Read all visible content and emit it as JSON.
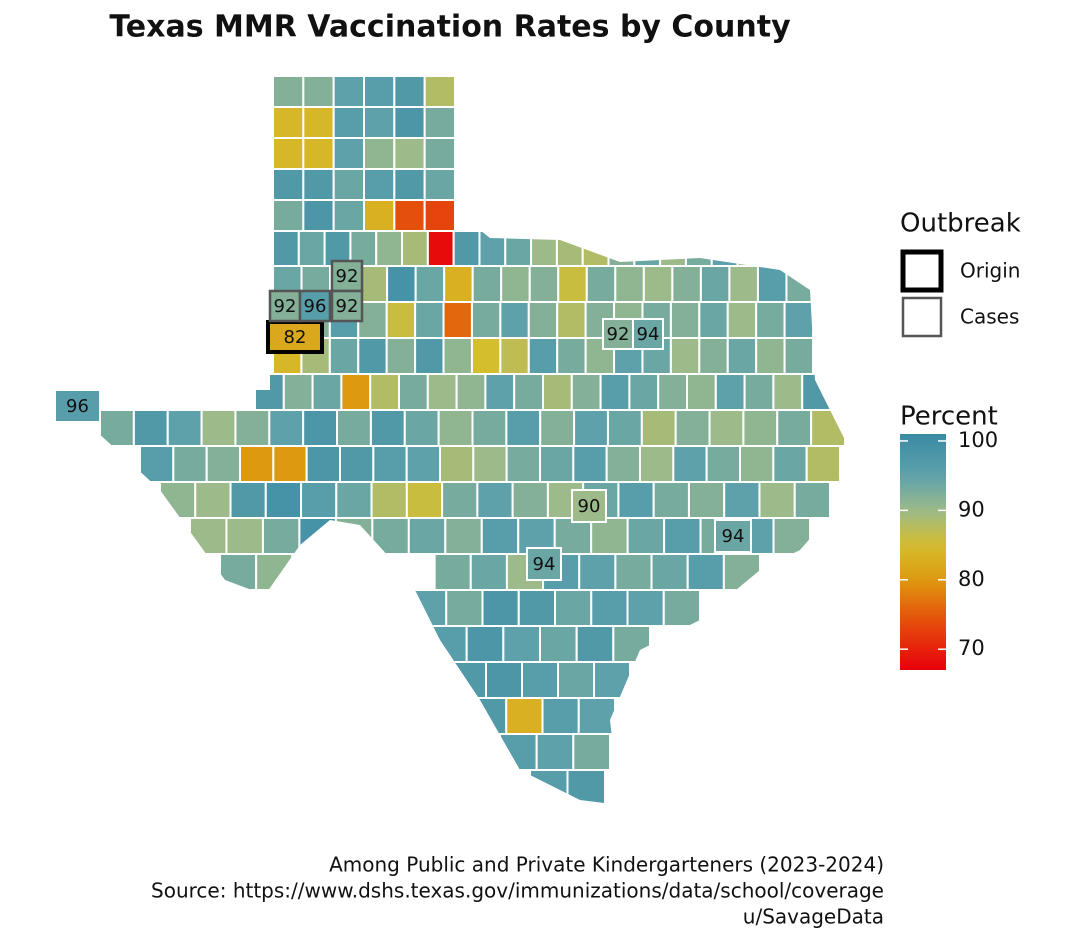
{
  "title": "Texas MMR Vaccination Rates by County",
  "caption": [
    "Among Public and Private Kindergarteners (2023-2024)",
    "Source: https://www.dshs.texas.gov/immunizations/data/school/coverage",
    "u/SavageData"
  ],
  "outbreak_legend": {
    "title": "Outbreak",
    "items": [
      "Origin",
      "Cases"
    ]
  },
  "colorbar": {
    "title": "Percent",
    "lim": [
      67,
      101
    ],
    "ticks": [
      100,
      90,
      80,
      70
    ]
  },
  "counties": [
    [
      92,
      92,
      95,
      96,
      97,
      88
    ],
    [
      84,
      84,
      96,
      95,
      98,
      93
    ],
    [
      84,
      84,
      95,
      91,
      90,
      93
    ],
    [
      97,
      97,
      94,
      96,
      97,
      94
    ],
    [
      93,
      98,
      94,
      83,
      74,
      73
    ],
    [
      97,
      94,
      97,
      93,
      91,
      89,
      68,
      97,
      95,
      94,
      90,
      89,
      88,
      92,
      94,
      90,
      93,
      95,
      90,
      92,
      96
    ],
    [
      94,
      93,
      92,
      89,
      99,
      94,
      83,
      93,
      91,
      92,
      86,
      93,
      91,
      90,
      92,
      94,
      90,
      96,
      93
    ],
    [
      94,
      92,
      96,
      92,
      86,
      94,
      76,
      93,
      95,
      92,
      88,
      92,
      91,
      93,
      92,
      94,
      90,
      93,
      95
    ],
    [
      84,
      89,
      94,
      97,
      92,
      97,
      91,
      85,
      87,
      96,
      93,
      91,
      95,
      94,
      90,
      92,
      94,
      91,
      93
    ],
    [
      97,
      92,
      94,
      80,
      88,
      93,
      90,
      91,
      95,
      93,
      89,
      92,
      96,
      94,
      92,
      91,
      95,
      93,
      90,
      97
    ],
    [
      93,
      97,
      95,
      90,
      92,
      95,
      98,
      93,
      97,
      94,
      91,
      93,
      96,
      92,
      95,
      94,
      89,
      92,
      90,
      91,
      93,
      88
    ],
    [
      96,
      93,
      92,
      80,
      80,
      98,
      97,
      96,
      95,
      89,
      90,
      93,
      94,
      96,
      92,
      90,
      95,
      93,
      91,
      94,
      88
    ],
    [
      91,
      90,
      97,
      99,
      96,
      94,
      88,
      86,
      93,
      95,
      92,
      90,
      94,
      96,
      93,
      92,
      95,
      90,
      93
    ],
    [
      90,
      90,
      93,
      99,
      92,
      93,
      94,
      92,
      96,
      95,
      93,
      91,
      94,
      96,
      93,
      95,
      92
    ],
    [
      93,
      91,
      92,
      95,
      93,
      94,
      90,
      96,
      95,
      93,
      94,
      96,
      92
    ],
    [
      95,
      93,
      98,
      97,
      94,
      96,
      95,
      93
    ],
    [
      96,
      98,
      95,
      94,
      97,
      93
    ],
    [
      97,
      98,
      96,
      94,
      95
    ],
    [
      97,
      83,
      96,
      95
    ],
    [
      96,
      95,
      93
    ],
    [
      96,
      97
    ]
  ],
  "labeled_counties": [
    {
      "value": 82,
      "outbreak": "origin"
    },
    {
      "value": 92,
      "outbreak": "cases"
    },
    {
      "value": 92,
      "outbreak": "cases"
    },
    {
      "value": 96,
      "outbreak": "cases"
    },
    {
      "value": 92,
      "outbreak": "cases"
    },
    {
      "value": 92
    },
    {
      "value": 94
    },
    {
      "value": 96
    },
    {
      "value": 90
    },
    {
      "value": 94
    },
    {
      "value": 94
    }
  ]
}
